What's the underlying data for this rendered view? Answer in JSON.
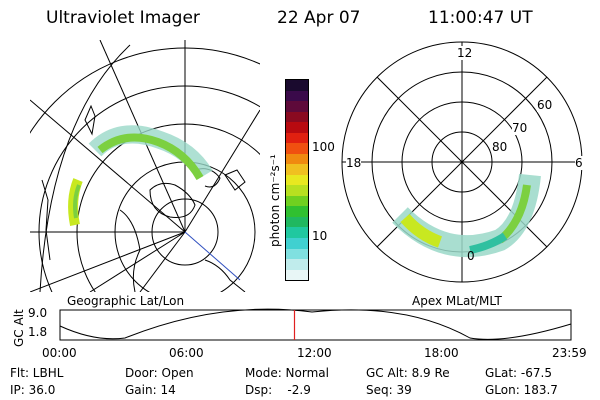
{
  "header": {
    "instrument": "Ultraviolet Imager",
    "date": "22 Apr 07",
    "time": "11:00:47 UT"
  },
  "left_panel": {
    "label": "Geographic Lat/Lon"
  },
  "right_panel": {
    "label": "Apex MLat/MLT",
    "mlt_labels": [
      "12",
      "18",
      "6",
      "0"
    ],
    "mlat_labels": [
      "60",
      "70",
      "80"
    ]
  },
  "colorbar": {
    "unit_label": "photon cm⁻²s⁻¹",
    "tick_labels": [
      "100",
      "10"
    ],
    "colors": [
      "#1a0a2e",
      "#3a0a4a",
      "#5e0a3a",
      "#8a0a20",
      "#b80a10",
      "#e02010",
      "#f05010",
      "#f08a10",
      "#f0c020",
      "#e8e820",
      "#b8e020",
      "#70d020",
      "#30c030",
      "#20b860",
      "#20c8a0",
      "#40d0d0",
      "#80e0e0",
      "#c0ecec",
      "#e8f6f6"
    ]
  },
  "timeline": {
    "axis_label": "GC Alt",
    "y_ticks": [
      "9.0",
      "1.8"
    ],
    "x_ticks": [
      "00:00",
      "06:00",
      "12:00",
      "18:00",
      "23:59"
    ],
    "current_time_fraction": 0.4589,
    "marker_color": "#e02020"
  },
  "status": {
    "filter": "Flt: LBHL",
    "ip": "IP: 36.0",
    "door": "Door: Open",
    "gain": "Gain: 14",
    "mode": "Mode: Normal",
    "dsp": "Dsp:    -2.9",
    "gc_alt": "GC Alt: 8.9 Re",
    "seq": "Seq: 39",
    "glat": "GLat: -67.5",
    "glon": "GLon: 183.7"
  }
}
